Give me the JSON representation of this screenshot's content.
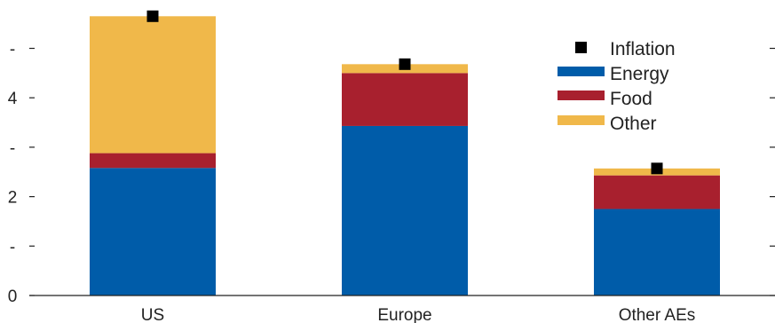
{
  "chart_data": {
    "type": "bar",
    "stacked": true,
    "categories": [
      "US",
      "Europe",
      "Other AEs"
    ],
    "series": [
      {
        "name": "Energy",
        "values": [
          2.58,
          3.43,
          1.75
        ],
        "color": "#005ca9"
      },
      {
        "name": "Food",
        "values": [
          0.3,
          1.07,
          0.68
        ],
        "color": "#a8202e"
      },
      {
        "name": "Other",
        "values": [
          2.77,
          0.18,
          0.14
        ],
        "color": "#f0b84a"
      }
    ],
    "markers": {
      "name": "Inflation",
      "values": [
        5.65,
        4.68,
        2.57
      ],
      "color": "#000000"
    },
    "ylim": [
      0,
      5.9
    ],
    "yticks": [
      0,
      1,
      2,
      3,
      4,
      5
    ],
    "ytick_labels": [
      "0",
      "-",
      "2",
      "-",
      "4",
      "-"
    ],
    "legend_position": "top-right",
    "title": "",
    "xlabel": "",
    "ylabel": ""
  }
}
